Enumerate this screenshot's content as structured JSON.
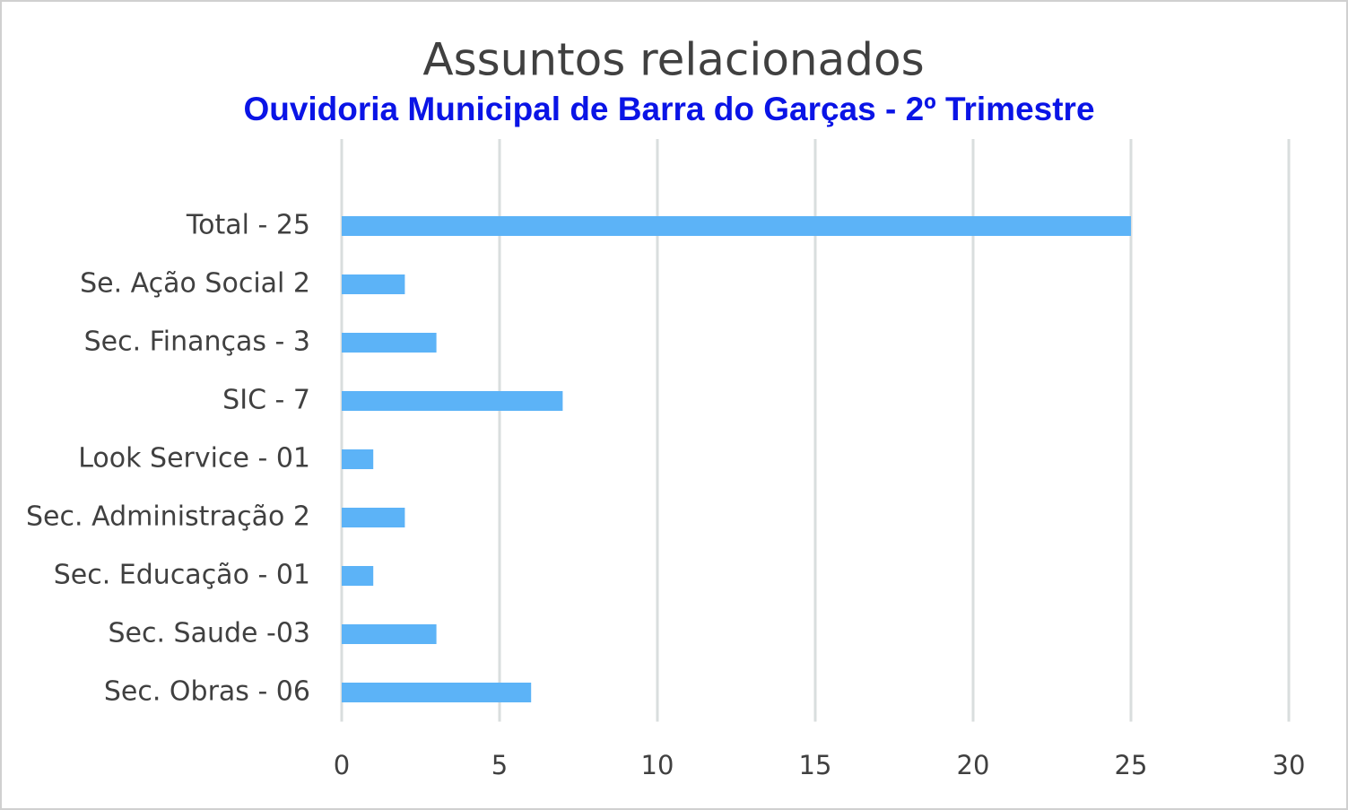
{
  "chart_data": {
    "type": "bar",
    "orientation": "horizontal",
    "title": "Assuntos relacionados",
    "subtitle": "Ouvidoria Municipal de Barra do Garças -  2º Trimestre",
    "categories": [
      "Total - 25",
      "Se. Ação Social 2",
      "Sec. Finanças - 3",
      "SIC - 7",
      "Look Service - 01",
      "Sec. Administração 2",
      "Sec. Educação - 01",
      "Sec. Saude -03",
      "Sec. Obras - 06"
    ],
    "values": [
      25,
      2,
      3,
      7,
      1,
      2,
      1,
      3,
      6
    ],
    "color": "#5cb3f7",
    "xlim": [
      0,
      30
    ],
    "xticks": [
      0,
      5,
      10,
      15,
      20,
      25,
      30
    ],
    "grid": true
  }
}
